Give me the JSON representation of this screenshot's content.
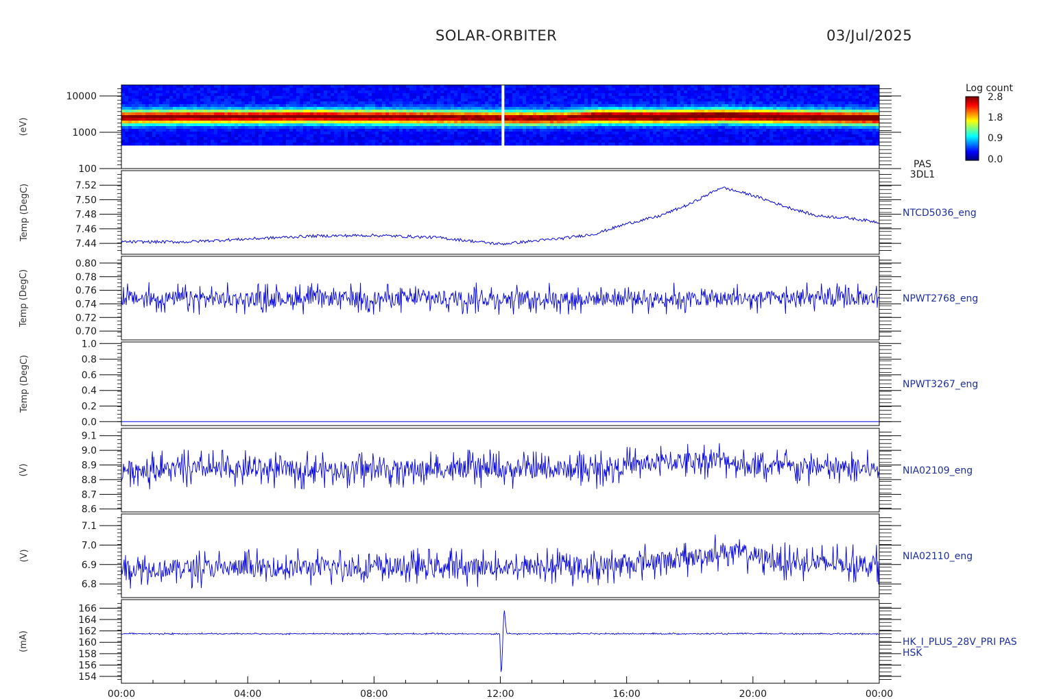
{
  "header": {
    "mission": "SOLAR-ORBITER",
    "date": "03/Jul/2025"
  },
  "colorbar": {
    "title": "Log count",
    "ticks": [
      "2.8",
      "1.8",
      "0.9",
      "0.0"
    ]
  },
  "y_axis_titles": [
    "(eV)",
    "Temp (DegC)",
    "Temp (DegC)",
    "Temp (DegC)",
    "(V)",
    "(V)",
    "(mA)"
  ],
  "x_ticks": [
    "00:00",
    "04:00",
    "08:00",
    "12:00",
    "16:00",
    "20:00",
    "00:00"
  ],
  "chart_data": [
    {
      "type": "heatmap",
      "ylabel": "(eV)",
      "scale": "log",
      "ylim": [
        100,
        20000
      ],
      "ticks": [
        {
          "v": 10000,
          "label": "10000"
        },
        {
          "v": 1000,
          "label": "1000"
        },
        {
          "v": 100,
          "label": "100"
        }
      ],
      "side_label": [
        "PAS",
        "3DL1"
      ],
      "peak_energy_hours": [
        0,
        2,
        4,
        6,
        7,
        8,
        10,
        12,
        14,
        15,
        17,
        19,
        21,
        24
      ],
      "peak_energy_ev": [
        2500,
        2600,
        2600,
        2700,
        2600,
        2600,
        2500,
        2400,
        2400,
        2700,
        2600,
        2800,
        2600,
        2400
      ]
    },
    {
      "type": "line",
      "ylim": [
        7.425,
        7.54
      ],
      "ticks": [
        {
          "v": 7.52,
          "label": "7.52"
        },
        {
          "v": 7.5,
          "label": "7.50"
        },
        {
          "v": 7.48,
          "label": "7.48"
        },
        {
          "v": 7.46,
          "label": "7.46"
        },
        {
          "v": 7.44,
          "label": "7.44"
        }
      ],
      "side_label": [
        "NTCD5036_eng"
      ],
      "x_hours": [
        0,
        2,
        4,
        6,
        8,
        10,
        12,
        14,
        15,
        16,
        17,
        18,
        19,
        20,
        21,
        22,
        23,
        24
      ],
      "y": [
        7.442,
        7.442,
        7.446,
        7.45,
        7.451,
        7.448,
        7.439,
        7.447,
        7.453,
        7.467,
        7.477,
        7.494,
        7.517,
        7.506,
        7.491,
        7.478,
        7.475,
        7.469
      ],
      "noise": 0.004
    },
    {
      "type": "line",
      "ylim": [
        0.687,
        0.81
      ],
      "ticks": [
        {
          "v": 0.8,
          "label": "0.80"
        },
        {
          "v": 0.78,
          "label": "0.78"
        },
        {
          "v": 0.76,
          "label": "0.76"
        },
        {
          "v": 0.74,
          "label": "0.74"
        },
        {
          "v": 0.72,
          "label": "0.72"
        },
        {
          "v": 0.7,
          "label": "0.70"
        }
      ],
      "side_label": [
        "NPWT2768_eng"
      ],
      "x_hours": [
        0,
        12,
        24
      ],
      "y": [
        0.748,
        0.748,
        0.748
      ],
      "noise": 0.03
    },
    {
      "type": "line",
      "ylim": [
        -0.05,
        1.02
      ],
      "ticks": [
        {
          "v": 1.0,
          "label": "1.0"
        },
        {
          "v": 0.8,
          "label": "0.8"
        },
        {
          "v": 0.6,
          "label": "0.6"
        },
        {
          "v": 0.4,
          "label": "0.4"
        },
        {
          "v": 0.2,
          "label": "0.2"
        },
        {
          "v": 0.0,
          "label": "0.0"
        }
      ],
      "side_label": [
        "NPWT3267_eng"
      ],
      "x_hours": [
        0,
        24
      ],
      "y": [
        0.0,
        0.0
      ],
      "noise": 0
    },
    {
      "type": "line",
      "ylim": [
        8.58,
        9.15
      ],
      "ticks": [
        {
          "v": 9.1,
          "label": "9.1"
        },
        {
          "v": 9.0,
          "label": "9.0"
        },
        {
          "v": 8.9,
          "label": "8.9"
        },
        {
          "v": 8.8,
          "label": "8.8"
        },
        {
          "v": 8.7,
          "label": "8.7"
        },
        {
          "v": 8.6,
          "label": "8.6"
        }
      ],
      "side_label": [
        "NIA02109_eng"
      ],
      "x_hours": [
        0,
        15,
        17,
        19,
        20,
        24
      ],
      "y": [
        8.87,
        8.87,
        8.92,
        8.94,
        8.89,
        8.87
      ],
      "noise": 0.17
    },
    {
      "type": "line",
      "ylim": [
        6.73,
        7.16
      ],
      "ticks": [
        {
          "v": 7.1,
          "label": "7.1"
        },
        {
          "v": 7.0,
          "label": "7.0"
        },
        {
          "v": 6.9,
          "label": "6.9"
        },
        {
          "v": 6.8,
          "label": "6.8"
        }
      ],
      "side_label": [
        "NIA02110_eng"
      ],
      "x_hours": [
        0,
        15,
        18,
        19,
        20,
        21,
        24
      ],
      "y": [
        6.88,
        6.89,
        6.93,
        6.97,
        6.95,
        6.91,
        6.9
      ],
      "noise": 0.13
    },
    {
      "type": "line",
      "ylim": [
        152.8,
        167.5
      ],
      "ticks": [
        {
          "v": 166,
          "label": "166"
        },
        {
          "v": 164,
          "label": "164"
        },
        {
          "v": 162,
          "label": "162"
        },
        {
          "v": 160,
          "label": "160"
        },
        {
          "v": 158,
          "label": "158"
        },
        {
          "v": 156,
          "label": "156"
        },
        {
          "v": 154,
          "label": "154"
        }
      ],
      "side_label": [
        "HK_I_PLUS_28V_PRI PAS",
        "HSK"
      ],
      "x_hours": [
        0,
        11.98,
        12.03,
        12.12,
        12.2,
        24
      ],
      "y": [
        161.5,
        161.5,
        153.5,
        166.2,
        161.5,
        161.5
      ],
      "noise": 0.2
    }
  ]
}
